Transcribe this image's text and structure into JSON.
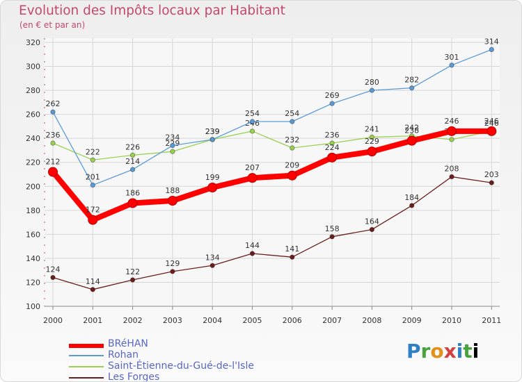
{
  "header": {
    "title": "Evolution des Impôts locaux par Habitant",
    "subtitle": "(en € et par an)"
  },
  "brand": {
    "letters": [
      "P",
      "r",
      "o",
      "x",
      "i",
      "t",
      "i"
    ]
  },
  "chart_data": {
    "type": "line",
    "x": [
      "2000",
      "2001",
      "2002",
      "2003",
      "2004",
      "2005",
      "2006",
      "2007",
      "2008",
      "2009",
      "2010",
      "2011"
    ],
    "ylim": [
      100,
      320
    ],
    "yticks": [
      "100",
      "120",
      "140",
      "160",
      "180",
      "200",
      "220",
      "240",
      "260",
      "280",
      "300",
      "320"
    ],
    "grid": true,
    "legend_position": "bottom-left",
    "series": [
      {
        "name": "Les Forges",
        "color": "#6b1d1d",
        "values": [
          124,
          114,
          122,
          129,
          134,
          144,
          141,
          158,
          164,
          184,
          208,
          203
        ],
        "labels": [
          "124",
          "114",
          "122",
          "129",
          "134",
          "144",
          "141",
          "158",
          "164",
          "184",
          "208",
          "203"
        ]
      },
      {
        "name": "Saint-Étienne-du-Gué-de-l'Isle",
        "color": "#9ad24f",
        "values": [
          236,
          222,
          226,
          229,
          239,
          246,
          232,
          236,
          241,
          242,
          239,
          246
        ],
        "labels": [
          "236",
          "222",
          "226",
          "229",
          "239",
          "246",
          "232",
          "236",
          "241",
          "242",
          "239",
          "246"
        ]
      },
      {
        "name": "Rohan",
        "color": "#5b9bd5",
        "values": [
          262,
          201,
          214,
          234,
          239,
          254,
          254,
          269,
          280,
          282,
          301,
          314
        ],
        "labels": [
          "262",
          "201",
          "214",
          "234",
          "239",
          "254",
          "254",
          "269",
          "280",
          "282",
          "301",
          "314"
        ]
      },
      {
        "name": "BRéHAN",
        "color": "#ff0000",
        "values": [
          212,
          172,
          186,
          188,
          199,
          207,
          209,
          224,
          229,
          238,
          246,
          246
        ],
        "labels": [
          "212",
          "172",
          "186",
          "188",
          "199",
          "207",
          "209",
          "224",
          "229",
          "238",
          "246",
          "246"
        ]
      }
    ],
    "legend": [
      "BRéHAN",
      "Rohan",
      "Saint-Étienne-du-Gué-de-l'Isle",
      "Les Forges"
    ]
  }
}
